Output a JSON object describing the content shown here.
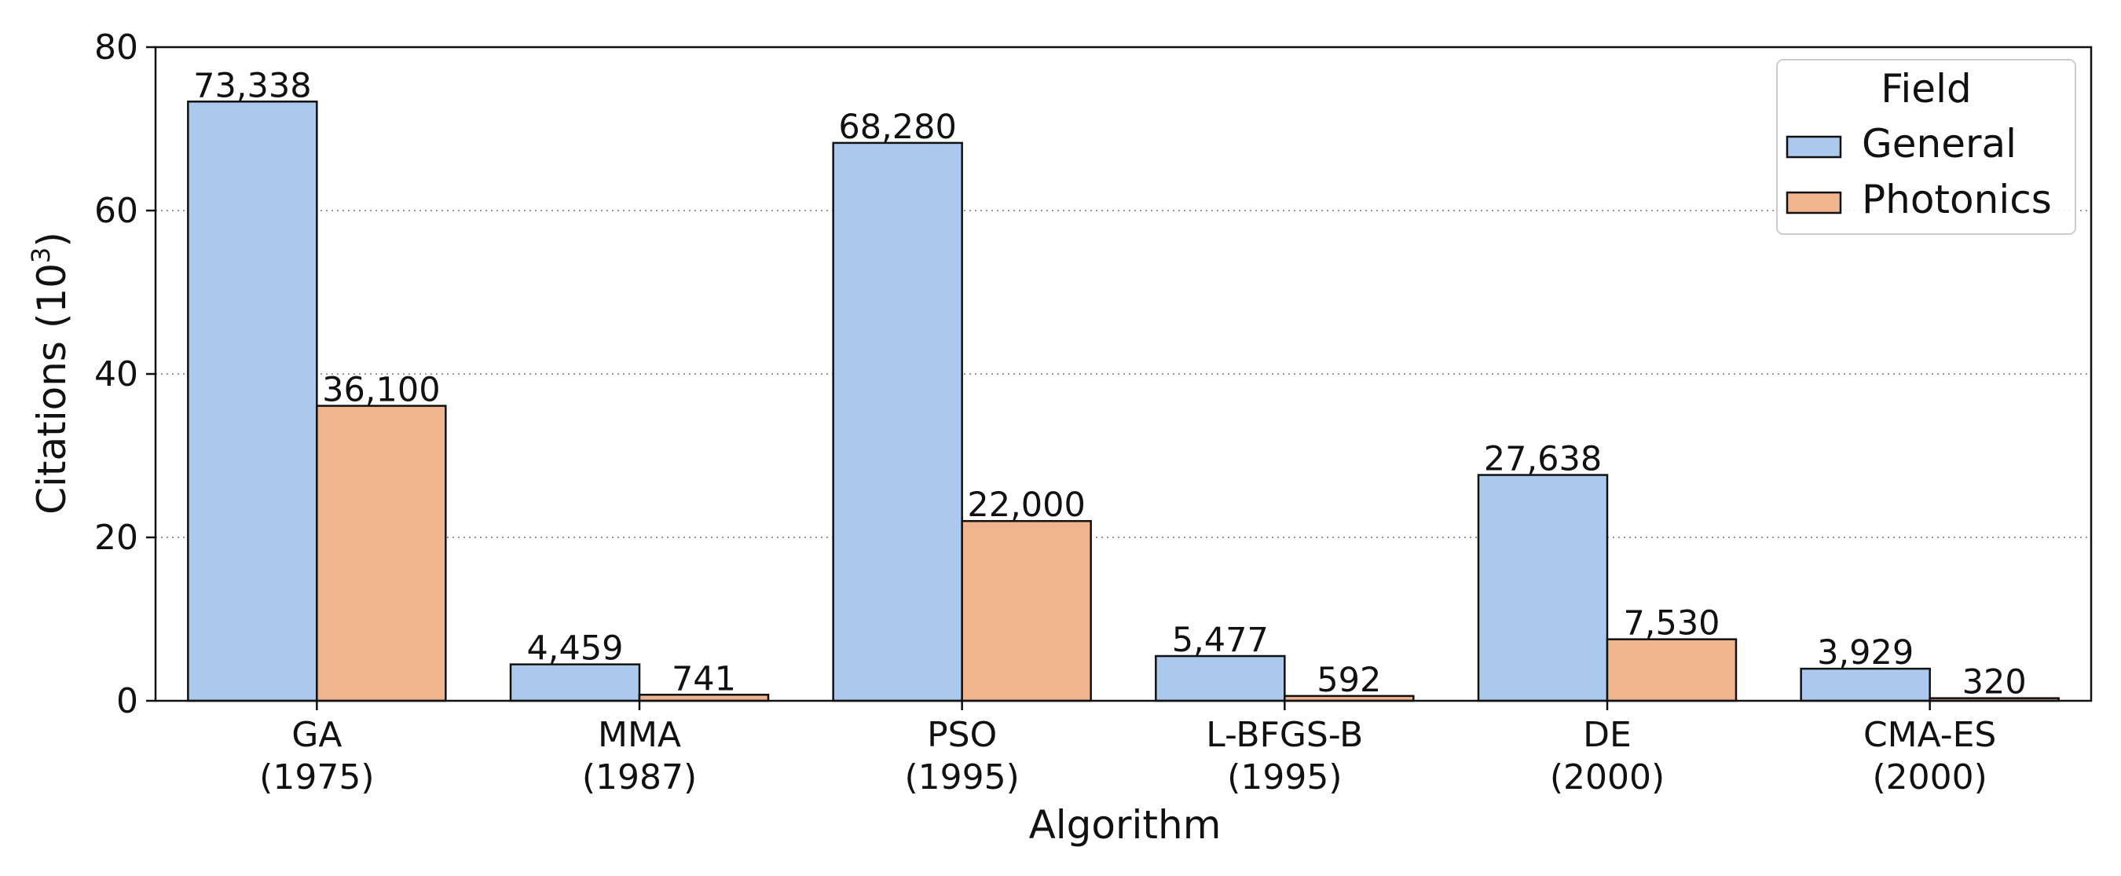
{
  "chart_data": {
    "type": "bar",
    "xlabel": "Algorithm",
    "ylabel": "Citations (10",
    "ylabel_sup": "3",
    "ylabel_close": ")",
    "ylim": [
      0,
      80
    ],
    "yticks": [
      0,
      20,
      40,
      60,
      80
    ],
    "grid": "horizontal dotted",
    "legend_placement": "top-right",
    "legend_title": "Field",
    "categories": [
      {
        "name": "GA",
        "year": "(1975)"
      },
      {
        "name": "MMA",
        "year": "(1987)"
      },
      {
        "name": "PSO",
        "year": "(1995)"
      },
      {
        "name": "L-BFGS-B",
        "year": "(1995)"
      },
      {
        "name": "DE",
        "year": "(2000)"
      },
      {
        "name": "CMA-ES",
        "year": "(2000)"
      }
    ],
    "series": [
      {
        "name": "General",
        "color": "#abc9ed",
        "values": [
          73.338,
          4.459,
          68.28,
          5.477,
          27.638,
          3.929
        ],
        "labels": [
          "73,338",
          "4,459",
          "68,280",
          "5,477",
          "27,638",
          "3,929"
        ]
      },
      {
        "name": "Photonics",
        "color": "#f0b48f",
        "values": [
          36.1,
          0.741,
          22.0,
          0.592,
          7.53,
          0.32
        ],
        "labels": [
          "36,100",
          "741",
          "22,000",
          "592",
          "7,530",
          "320"
        ]
      }
    ]
  }
}
